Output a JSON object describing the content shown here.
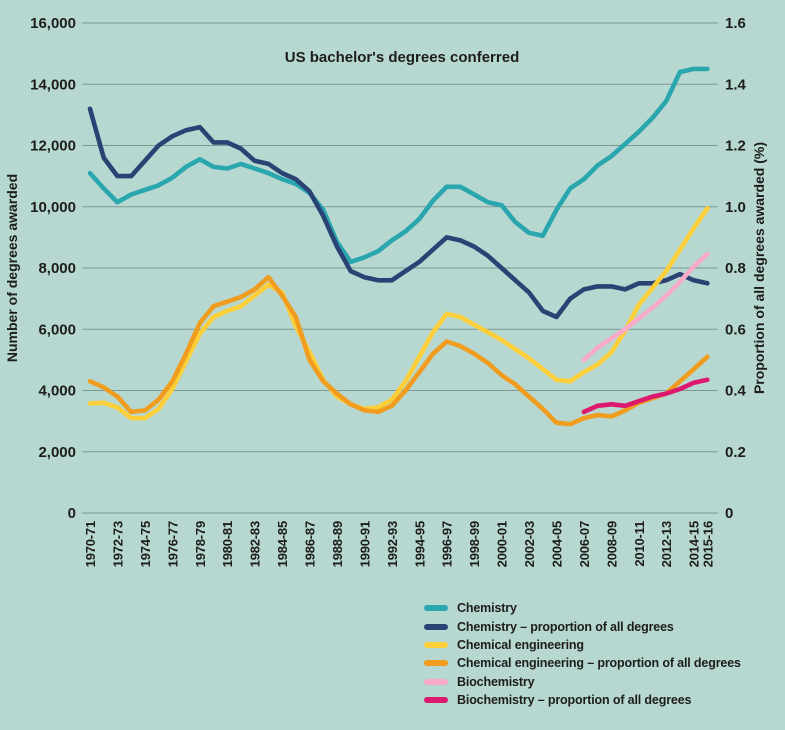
{
  "colors": {
    "background": "#b7d8d0",
    "grid": "#7d9894",
    "text": "#1d1d1b"
  },
  "chart_data": {
    "type": "line",
    "title": "US bachelor's degrees conferred",
    "grid": true,
    "legend_position": "bottom-right",
    "left_axis": {
      "label": "Number of degrees awarded",
      "range": [
        0,
        16000
      ],
      "ticks": [
        "0",
        "2,000",
        "4,000",
        "6,000",
        "8,000",
        "10,000",
        "12,000",
        "14,000",
        "16,000"
      ]
    },
    "right_axis": {
      "label": "Proportion of all degrees awarded (%)",
      "range": [
        0,
        1.6
      ],
      "ticks": [
        "0",
        "0.2",
        "0.4",
        "0.6",
        "0.8",
        "1.0",
        "1.2",
        "1.4",
        "1.6"
      ]
    },
    "x_axis": {
      "ticks": [
        {
          "label": "1970-71",
          "year": 1970
        },
        {
          "label": "1972-73",
          "year": 1972
        },
        {
          "label": "1974-75",
          "year": 1974
        },
        {
          "label": "1976-77",
          "year": 1976
        },
        {
          "label": "1978-79",
          "year": 1978
        },
        {
          "label": "1980-81",
          "year": 1980
        },
        {
          "label": "1982-83",
          "year": 1982
        },
        {
          "label": "1984-85",
          "year": 1984
        },
        {
          "label": "1986-87",
          "year": 1986
        },
        {
          "label": "1988-89",
          "year": 1988
        },
        {
          "label": "1990-91",
          "year": 1990
        },
        {
          "label": "1992-93",
          "year": 1992
        },
        {
          "label": "1994-95",
          "year": 1994
        },
        {
          "label": "1996-97",
          "year": 1996
        },
        {
          "label": "1998-99",
          "year": 1998
        },
        {
          "label": "2000-01",
          "year": 2000
        },
        {
          "label": "2002-03",
          "year": 2002
        },
        {
          "label": "2004-05",
          "year": 2004
        },
        {
          "label": "2006-07",
          "year": 2006
        },
        {
          "label": "2008-09",
          "year": 2008
        },
        {
          "label": "2010-11",
          "year": 2010
        },
        {
          "label": "2012-13",
          "year": 2012
        },
        {
          "label": "2014-15",
          "year": 2014
        },
        {
          "label": "2015-16",
          "year": 2015
        }
      ]
    },
    "series": [
      {
        "name": "Chemistry",
        "axis": "left",
        "color": "#2aa6ae",
        "start_year": 1970,
        "values": [
          11100,
          10600,
          10150,
          10400,
          10550,
          10700,
          10950,
          11300,
          11550,
          11300,
          11250,
          11400,
          11250,
          11100,
          10900,
          10750,
          10450,
          9900,
          8850,
          8200,
          8350,
          8550,
          8900,
          9200,
          9600,
          10200,
          10650,
          10650,
          10400,
          10150,
          10050,
          9500,
          9150,
          9050,
          9900,
          10600,
          10900,
          11350,
          11650,
          12050,
          12450,
          12900,
          13450,
          14400,
          14500,
          14500
        ]
      },
      {
        "name": "Chemistry – proportion of all degrees",
        "axis": "right",
        "color": "#2a4374",
        "start_year": 1970,
        "values": [
          1.32,
          1.16,
          1.1,
          1.1,
          1.15,
          1.2,
          1.23,
          1.25,
          1.26,
          1.21,
          1.21,
          1.19,
          1.15,
          1.14,
          1.11,
          1.09,
          1.05,
          0.97,
          0.87,
          0.79,
          0.77,
          0.76,
          0.76,
          0.79,
          0.82,
          0.86,
          0.9,
          0.89,
          0.87,
          0.84,
          0.8,
          0.76,
          0.72,
          0.66,
          0.64,
          0.7,
          0.73,
          0.74,
          0.74,
          0.73,
          0.75,
          0.75,
          0.76,
          0.78,
          0.76,
          0.75
        ]
      },
      {
        "name": "Chemical engineering",
        "axis": "left",
        "color": "#fccf3a",
        "start_year": 1970,
        "values": [
          3580,
          3600,
          3450,
          3100,
          3100,
          3400,
          4050,
          4950,
          5850,
          6400,
          6600,
          6750,
          7100,
          7450,
          7200,
          6100,
          5250,
          4350,
          3800,
          3550,
          3400,
          3450,
          3700,
          4300,
          5100,
          5900,
          6500,
          6400,
          6150,
          5900,
          5650,
          5350,
          5050,
          4700,
          4350,
          4300,
          4600,
          4850,
          5250,
          5950,
          6800,
          7350,
          7900,
          8600,
          9300,
          9950
        ]
      },
      {
        "name": "Chemical engineering – proportion of all degrees",
        "axis": "right",
        "color": "#f09c1f",
        "start_year": 1970,
        "values": [
          0.43,
          0.41,
          0.38,
          0.33,
          0.335,
          0.37,
          0.43,
          0.52,
          0.62,
          0.675,
          0.69,
          0.705,
          0.73,
          0.77,
          0.71,
          0.64,
          0.5,
          0.43,
          0.39,
          0.355,
          0.335,
          0.33,
          0.35,
          0.4,
          0.46,
          0.52,
          0.56,
          0.545,
          0.52,
          0.49,
          0.45,
          0.42,
          0.38,
          0.34,
          0.295,
          0.29,
          0.31,
          0.32,
          0.315,
          0.335,
          0.36,
          0.375,
          0.39,
          0.43,
          0.47,
          0.51
        ]
      },
      {
        "name": "Biochemistry",
        "axis": "left",
        "color": "#f8abc9",
        "start_year": 2006,
        "values": [
          5000,
          5400,
          5700,
          6000,
          6350,
          6700,
          7100,
          7550,
          8050,
          8450
        ]
      },
      {
        "name": "Biochemistry – proportion of all degrees",
        "axis": "right",
        "color": "#dd196f",
        "start_year": 2006,
        "values": [
          0.33,
          0.35,
          0.355,
          0.35,
          0.365,
          0.38,
          0.39,
          0.405,
          0.425,
          0.435
        ]
      }
    ]
  }
}
